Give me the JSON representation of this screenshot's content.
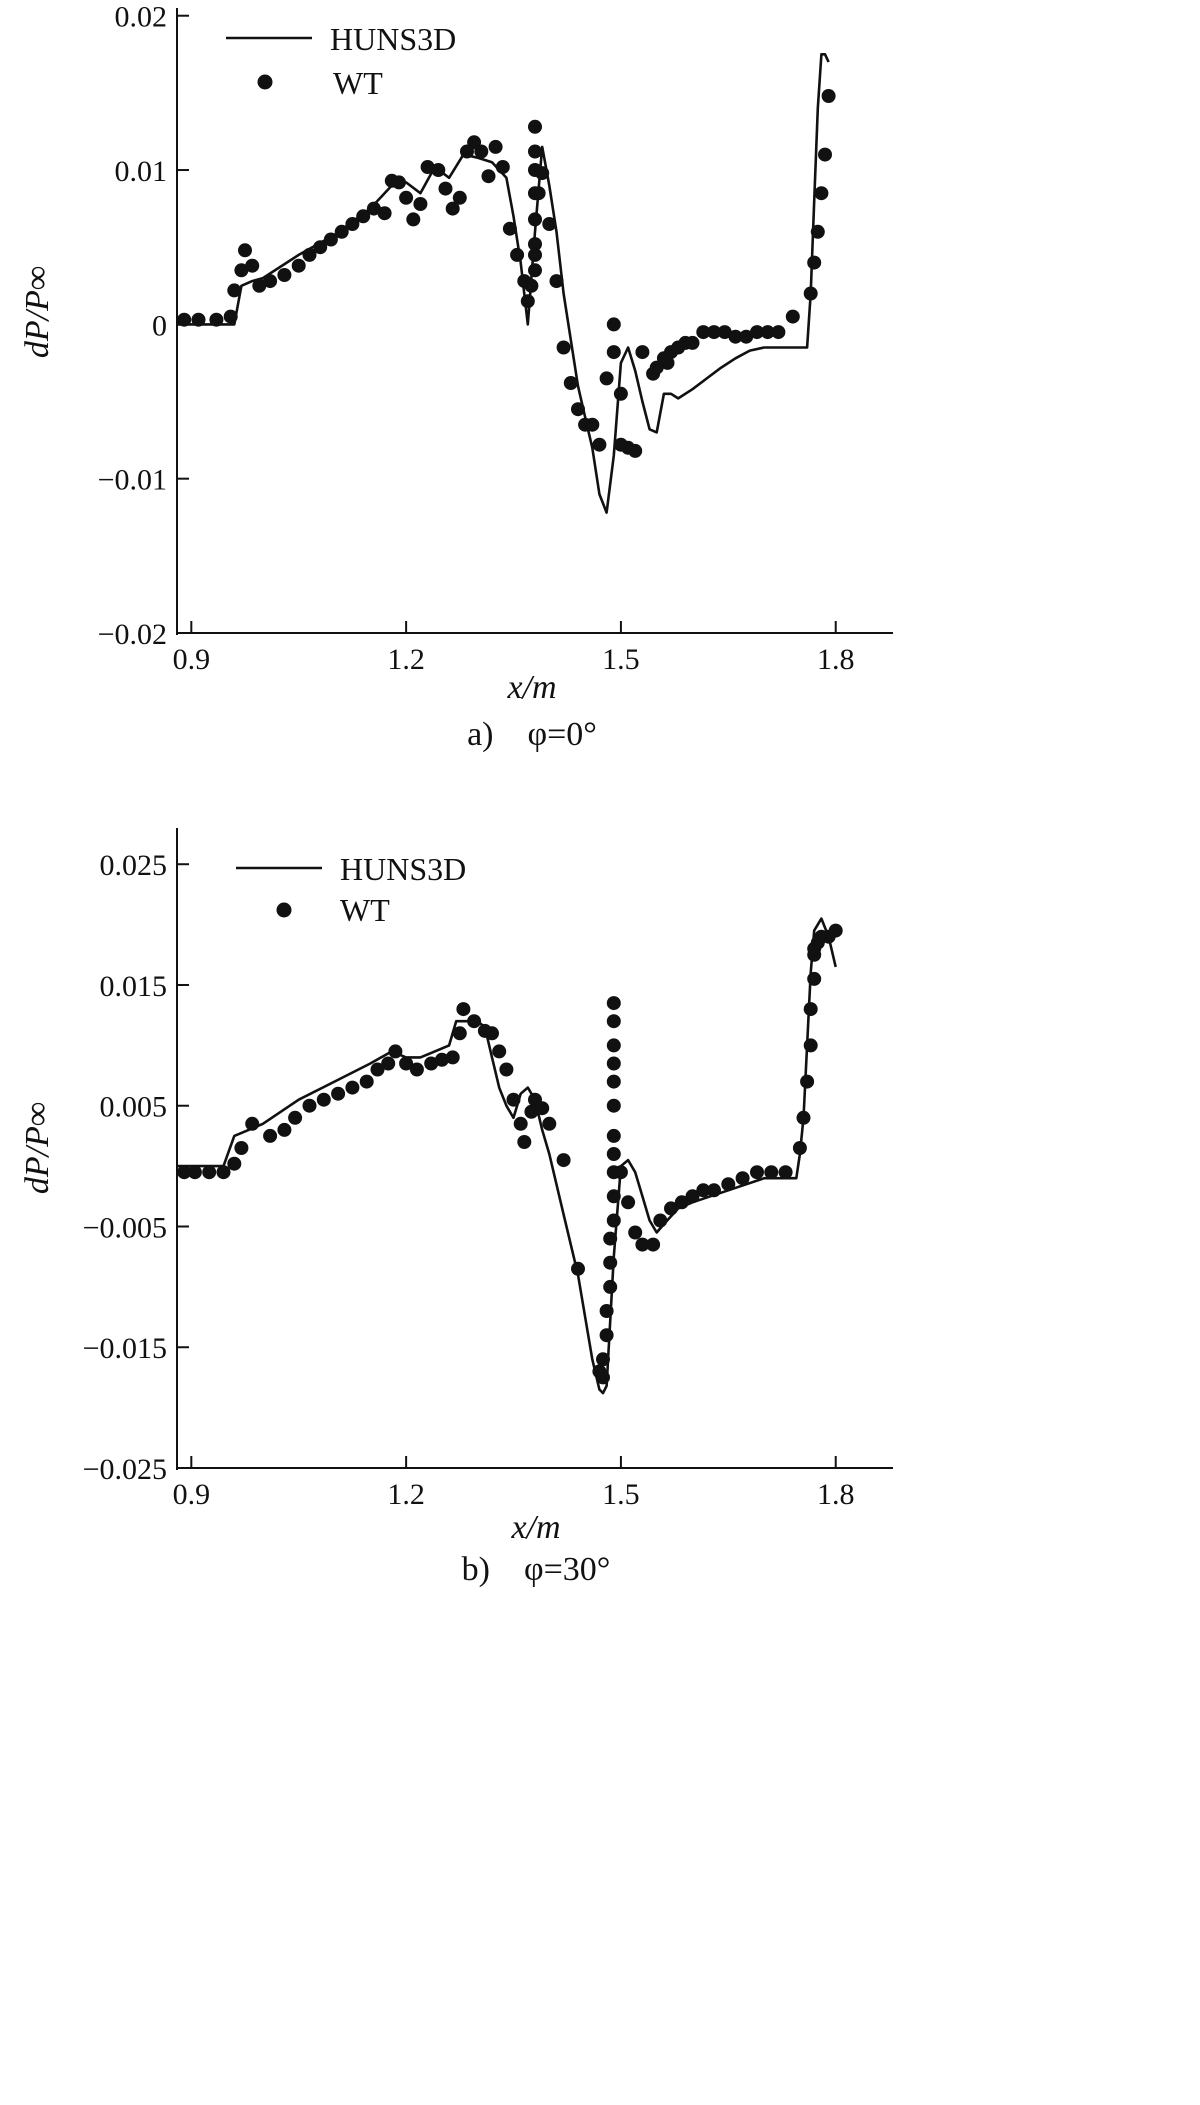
{
  "chart_data": [
    {
      "type": "line",
      "caption": "a) φ=0°",
      "xlabel": "x/m",
      "ylabel": "dP/P∞",
      "xlim": [
        0.88,
        1.88
      ],
      "ylim": [
        -0.02,
        0.0205
      ],
      "xticks": [
        0.9,
        1.2,
        1.5,
        1.8
      ],
      "xtick_labels": [
        "0.9",
        "1.2",
        "1.5",
        "1.8"
      ],
      "yticks": [
        -0.02,
        -0.01,
        0,
        0.01,
        0.02
      ],
      "ytick_labels": [
        "−0.02",
        "−0.01",
        "0",
        "0.01",
        "0.02"
      ],
      "legend_position": "top-left",
      "grid": false,
      "series": [
        {
          "name": "HUNS3D",
          "style": "line",
          "x": [
            0.88,
            0.96,
            0.97,
            0.985,
            1.0,
            1.05,
            1.1,
            1.15,
            1.18,
            1.2,
            1.22,
            1.24,
            1.26,
            1.28,
            1.3,
            1.32,
            1.34,
            1.35,
            1.36,
            1.37,
            1.38,
            1.39,
            1.4,
            1.41,
            1.42,
            1.43,
            1.44,
            1.45,
            1.46,
            1.47,
            1.48,
            1.49,
            1.5,
            1.51,
            1.52,
            1.53,
            1.54,
            1.55,
            1.56,
            1.57,
            1.58,
            1.6,
            1.62,
            1.64,
            1.66,
            1.68,
            1.7,
            1.75,
            1.76,
            1.765,
            1.77,
            1.775,
            1.78,
            1.785,
            1.79
          ],
          "y": [
            0,
            0,
            0.0025,
            0.0028,
            0.003,
            0.0045,
            0.0058,
            0.0075,
            0.009,
            0.0092,
            0.0085,
            0.0102,
            0.0095,
            0.011,
            0.0108,
            0.0105,
            0.0095,
            0.007,
            0.004,
            0.0,
            0.006,
            0.0115,
            0.009,
            0.006,
            0.002,
            -0.001,
            -0.004,
            -0.006,
            -0.008,
            -0.011,
            -0.0122,
            -0.0085,
            -0.0025,
            -0.0015,
            -0.003,
            -0.005,
            -0.0068,
            -0.007,
            -0.0045,
            -0.0045,
            -0.0048,
            -0.0042,
            -0.0035,
            -0.0028,
            -0.0022,
            -0.0017,
            -0.0015,
            -0.0015,
            -0.0015,
            0.002,
            0.008,
            0.014,
            0.0175,
            0.0175,
            0.017
          ]
        },
        {
          "name": "WT",
          "style": "scatter",
          "x": [
            0.89,
            0.91,
            0.935,
            0.955,
            0.96,
            0.97,
            0.975,
            0.985,
            0.995,
            1.01,
            1.03,
            1.05,
            1.065,
            1.08,
            1.095,
            1.11,
            1.125,
            1.14,
            1.155,
            1.17,
            1.18,
            1.19,
            1.2,
            1.21,
            1.22,
            1.23,
            1.245,
            1.255,
            1.265,
            1.275,
            1.285,
            1.295,
            1.305,
            1.315,
            1.325,
            1.335,
            1.345,
            1.355,
            1.365,
            1.37,
            1.375,
            1.38,
            1.38,
            1.38,
            1.38,
            1.38,
            1.38,
            1.38,
            1.38,
            1.385,
            1.39,
            1.4,
            1.41,
            1.42,
            1.43,
            1.44,
            1.45,
            1.46,
            1.47,
            1.48,
            1.49,
            1.49,
            1.5,
            1.5,
            1.51,
            1.52,
            1.53,
            1.545,
            1.55,
            1.56,
            1.565,
            1.57,
            1.58,
            1.59,
            1.6,
            1.615,
            1.63,
            1.645,
            1.66,
            1.675,
            1.69,
            1.705,
            1.72,
            1.74,
            1.765,
            1.77,
            1.775,
            1.78,
            1.785,
            1.79
          ],
          "y": [
            0.0003,
            0.0003,
            0.0003,
            0.0005,
            0.0022,
            0.0035,
            0.0048,
            0.0038,
            0.0025,
            0.0028,
            0.0032,
            0.0038,
            0.0045,
            0.005,
            0.0055,
            0.006,
            0.0065,
            0.007,
            0.0075,
            0.0072,
            0.0093,
            0.0092,
            0.0082,
            0.0068,
            0.0078,
            0.0102,
            0.01,
            0.0088,
            0.0075,
            0.0082,
            0.0112,
            0.0118,
            0.0112,
            0.0096,
            0.0115,
            0.0102,
            0.0062,
            0.0045,
            0.0028,
            0.0015,
            0.0025,
            0.0035,
            0.0052,
            0.0068,
            0.0085,
            0.01,
            0.0112,
            0.0128,
            0.0045,
            0.0085,
            0.0098,
            0.0065,
            0.0028,
            -0.0015,
            -0.0038,
            -0.0055,
            -0.0065,
            -0.0065,
            -0.0078,
            -0.0035,
            -0.0018,
            0.0,
            -0.0078,
            -0.0045,
            -0.008,
            -0.0082,
            -0.0018,
            -0.0032,
            -0.0028,
            -0.0022,
            -0.0025,
            -0.0018,
            -0.0015,
            -0.0012,
            -0.0012,
            -0.0005,
            -0.0005,
            -0.0005,
            -0.0008,
            -0.0008,
            -0.0005,
            -0.0005,
            -0.0005,
            0.0005,
            0.002,
            0.004,
            0.006,
            0.0085,
            0.011,
            0.0148
          ]
        }
      ]
    },
    {
      "type": "line",
      "caption": "b) φ=30°",
      "xlabel": "x/m",
      "ylabel": "dP/P∞",
      "xlim": [
        0.88,
        1.88
      ],
      "ylim": [
        -0.025,
        0.028
      ],
      "xticks": [
        0.9,
        1.2,
        1.5,
        1.8
      ],
      "xtick_labels": [
        "0.9",
        "1.2",
        "1.5",
        "1.8"
      ],
      "yticks": [
        -0.025,
        -0.015,
        -0.005,
        0.005,
        0.015,
        0.025
      ],
      "ytick_labels": [
        "−0.025",
        "−0.015",
        "−0.005",
        "0.005",
        "0.015",
        "0.025"
      ],
      "legend_position": "top-left",
      "grid": false,
      "series": [
        {
          "name": "HUNS3D",
          "style": "line",
          "x": [
            0.88,
            0.945,
            0.96,
            0.98,
            1.0,
            1.05,
            1.1,
            1.15,
            1.18,
            1.2,
            1.22,
            1.24,
            1.26,
            1.27,
            1.28,
            1.3,
            1.31,
            1.32,
            1.33,
            1.34,
            1.35,
            1.36,
            1.37,
            1.38,
            1.39,
            1.4,
            1.42,
            1.44,
            1.46,
            1.47,
            1.475,
            1.48,
            1.49,
            1.5,
            1.51,
            1.52,
            1.53,
            1.54,
            1.55,
            1.56,
            1.58,
            1.6,
            1.65,
            1.7,
            1.73,
            1.745,
            1.75,
            1.755,
            1.76,
            1.765,
            1.77,
            1.78,
            1.79,
            1.8
          ],
          "y": [
            0.0,
            0.0,
            0.0025,
            0.003,
            0.0035,
            0.0055,
            0.007,
            0.0085,
            0.0095,
            0.009,
            0.009,
            0.0095,
            0.01,
            0.012,
            0.012,
            0.012,
            0.0115,
            0.009,
            0.0065,
            0.005,
            0.004,
            0.006,
            0.0065,
            0.0055,
            0.003,
            0.001,
            -0.004,
            -0.009,
            -0.016,
            -0.0185,
            -0.0188,
            -0.0182,
            -0.0075,
            0.0,
            0.0005,
            -0.0005,
            -0.0025,
            -0.0045,
            -0.0055,
            -0.0048,
            -0.0035,
            -0.003,
            -0.002,
            -0.001,
            -0.001,
            -0.001,
            0.001,
            0.004,
            0.01,
            0.016,
            0.0195,
            0.0205,
            0.019,
            0.0165
          ]
        },
        {
          "name": "WT",
          "style": "scatter",
          "x": [
            0.89,
            0.905,
            0.925,
            0.945,
            0.96,
            0.97,
            0.985,
            1.01,
            1.03,
            1.045,
            1.065,
            1.085,
            1.105,
            1.125,
            1.145,
            1.16,
            1.175,
            1.185,
            1.2,
            1.215,
            1.235,
            1.25,
            1.265,
            1.275,
            1.28,
            1.295,
            1.31,
            1.32,
            1.33,
            1.34,
            1.35,
            1.36,
            1.365,
            1.375,
            1.38,
            1.39,
            1.4,
            1.42,
            1.44,
            1.47,
            1.475,
            1.475,
            1.48,
            1.48,
            1.485,
            1.485,
            1.485,
            1.49,
            1.49,
            1.49,
            1.49,
            1.49,
            1.49,
            1.49,
            1.49,
            1.49,
            1.49,
            1.49,
            1.5,
            1.51,
            1.52,
            1.53,
            1.545,
            1.555,
            1.57,
            1.585,
            1.6,
            1.615,
            1.63,
            1.65,
            1.67,
            1.69,
            1.71,
            1.73,
            1.75,
            1.755,
            1.76,
            1.765,
            1.765,
            1.77,
            1.77,
            1.77,
            1.775,
            1.78,
            1.79,
            1.8
          ],
          "y": [
            -0.0005,
            -0.0005,
            -0.0005,
            -0.0005,
            0.0002,
            0.0015,
            0.0035,
            0.0025,
            0.003,
            0.004,
            0.005,
            0.0055,
            0.006,
            0.0065,
            0.007,
            0.008,
            0.0085,
            0.0095,
            0.0085,
            0.008,
            0.0085,
            0.0088,
            0.009,
            0.011,
            0.013,
            0.012,
            0.0112,
            0.011,
            0.0095,
            0.008,
            0.0055,
            0.0035,
            0.002,
            0.0045,
            0.0055,
            0.0048,
            0.0035,
            0.0005,
            -0.0085,
            -0.017,
            -0.0175,
            -0.016,
            -0.014,
            -0.012,
            -0.01,
            -0.008,
            -0.006,
            -0.0045,
            -0.0025,
            -0.0005,
            0.001,
            0.0025,
            0.005,
            0.007,
            0.0085,
            0.01,
            0.012,
            0.0135,
            -0.0005,
            -0.003,
            -0.0055,
            -0.0065,
            -0.0065,
            -0.0045,
            -0.0035,
            -0.003,
            -0.0025,
            -0.002,
            -0.002,
            -0.0015,
            -0.001,
            -0.0005,
            -0.0005,
            -0.0005,
            0.0015,
            0.004,
            0.007,
            0.01,
            0.013,
            0.0155,
            0.0175,
            0.018,
            0.0185,
            0.019,
            0.019,
            0.0195
          ]
        }
      ]
    }
  ]
}
